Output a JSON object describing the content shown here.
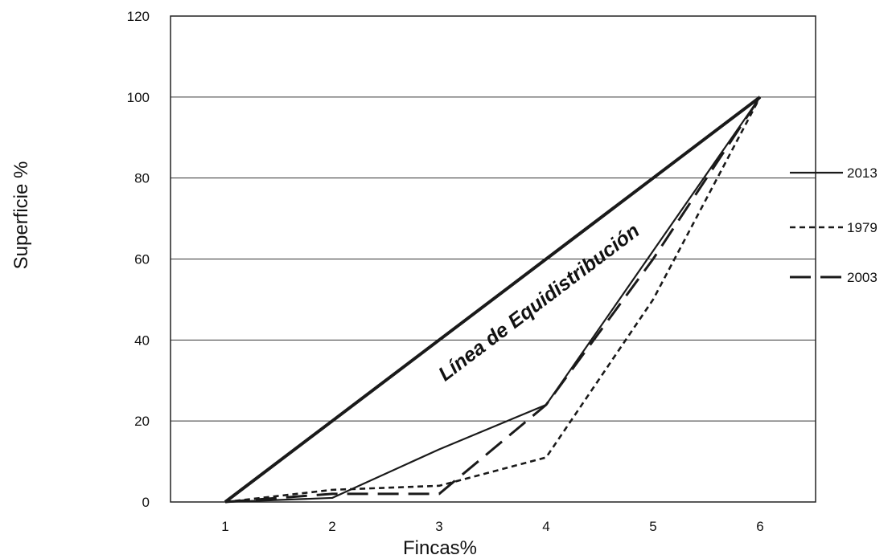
{
  "chart_data": {
    "type": "line",
    "title": "",
    "xlabel": "Fincas%",
    "ylabel": "Superficie %",
    "x": [
      1,
      2,
      3,
      4,
      5,
      6
    ],
    "xlim": [
      1,
      6
    ],
    "ylim": [
      0,
      120
    ],
    "yticks": [
      0,
      20,
      40,
      60,
      80,
      100,
      120
    ],
    "grid": "horizontal",
    "legend_position": "right",
    "annotation": "Línea de Equidistribución",
    "series": [
      {
        "name": "2013",
        "style": "solid-thin",
        "color": "#1a1a1a",
        "values": [
          0,
          1,
          13,
          24,
          62,
          100
        ]
      },
      {
        "name": "1979",
        "style": "short-dash",
        "color": "#1a1a1a",
        "values": [
          0,
          3,
          4,
          11,
          50,
          100
        ]
      },
      {
        "name": "2003",
        "style": "long-dash",
        "color": "#1a1a1a",
        "values": [
          0,
          2,
          2,
          24,
          60,
          100
        ]
      },
      {
        "name": "",
        "style": "solid-thick",
        "color": "#1a1a1a",
        "values": [
          0,
          20,
          40,
          60,
          80,
          100
        ]
      }
    ]
  }
}
